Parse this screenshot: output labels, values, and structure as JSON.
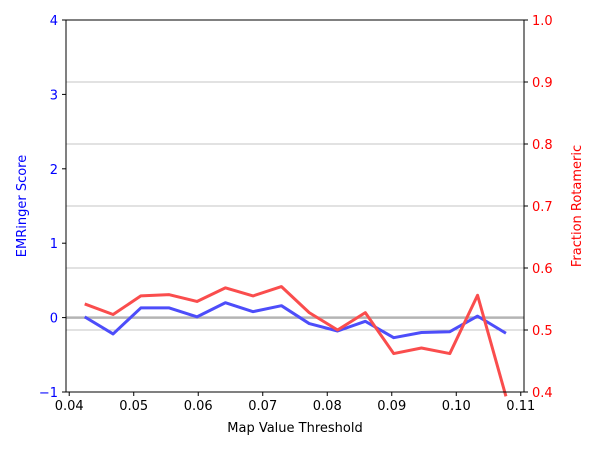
{
  "chart_data": {
    "type": "line",
    "xlabel": "Map Value Threshold",
    "y_left_label": "EMRinger Score",
    "y_right_label": "Fraction Rotameric",
    "x_ticks": [
      "0.04",
      "0.05",
      "0.06",
      "0.07",
      "0.08",
      "0.09",
      "0.10",
      "0.11"
    ],
    "x_tick_values": [
      0.04,
      0.05,
      0.06,
      0.07,
      0.08,
      0.09,
      0.1,
      0.11
    ],
    "y_left_ticks": [
      "−1",
      "0",
      "1",
      "2",
      "3",
      "4"
    ],
    "y_left_tick_values": [
      -1,
      0,
      1,
      2,
      3,
      4
    ],
    "y_right_ticks": [
      "0.4",
      "0.5",
      "0.6",
      "0.7",
      "0.8",
      "0.9",
      "1.0"
    ],
    "y_right_tick_values": [
      0.4,
      0.5,
      0.6,
      0.7,
      0.8,
      0.9,
      1.0
    ],
    "xlim": [
      0.0395,
      0.1105
    ],
    "ylim_left": [
      -1,
      4
    ],
    "ylim_right": [
      0.4,
      1.0
    ],
    "grid": "horizontal lines at right-axis ticks",
    "x": [
      0.0424,
      0.0468,
      0.0511,
      0.0555,
      0.0598,
      0.0642,
      0.0685,
      0.0729,
      0.0772,
      0.0816,
      0.0859,
      0.0903,
      0.0946,
      0.099,
      0.1033,
      0.1077
    ],
    "series": [
      {
        "axis": "left",
        "color": "#4d4dfa",
        "values": [
          0.01,
          -0.22,
          0.13,
          0.13,
          0.01,
          0.2,
          0.08,
          0.16,
          -0.08,
          -0.18,
          -0.05,
          -0.27,
          -0.2,
          -0.19,
          0.02,
          -0.21
        ]
      },
      {
        "axis": "right",
        "color": "#fa4d4d",
        "values": [
          0.542,
          0.525,
          0.555,
          0.557,
          0.546,
          0.568,
          0.555,
          0.57,
          0.528,
          0.5,
          0.528,
          0.462,
          0.471,
          0.462,
          0.556,
          0.393
        ]
      }
    ],
    "reference_line": {
      "axis": "left",
      "value": 0,
      "color": "#b4b4b4"
    }
  }
}
